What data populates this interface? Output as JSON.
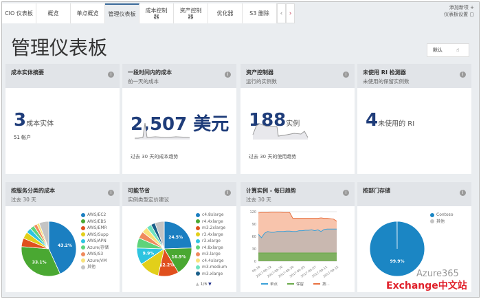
{
  "tabs": [
    "CIO 仪表板",
    "概览",
    "单点概览",
    "管理仪表板",
    "成本控制器",
    "资产控制器",
    "优化器",
    "S3 删除"
  ],
  "active_tab": 3,
  "tab_nav": {
    "prev": "‹",
    "next": "›"
  },
  "settings": {
    "add": "添加新项",
    "settings": "仪表板设置",
    "plus": "+"
  },
  "page_title": "管理仪表板",
  "default_button": "默认",
  "cards": [
    {
      "title": "成本实体摘要",
      "subtitle": "",
      "value": "3",
      "unit": "成本实体",
      "extra": "51 帐户"
    },
    {
      "title": "一段时间内的成本",
      "subtitle": "前一天的成本",
      "value": "2,507 美元",
      "unit": "",
      "caption": "过去 30 天的成本趋势"
    },
    {
      "title": "资产控制器",
      "subtitle": "运行的实例数",
      "value": "188",
      "unit": "实例",
      "caption": "过去 30 天的使用趋势"
    },
    {
      "title": "未使用 RI 检测器",
      "subtitle": "未使用的保留实例数",
      "value": "4",
      "unit": "未使用的 RI"
    },
    {
      "title": "按服务分类的成本",
      "subtitle": "过去 30 天"
    },
    {
      "title": "可能节省",
      "subtitle": "实例类型定价建议"
    },
    {
      "title": "计算实例 - 每日趋势",
      "subtitle": "过去 30 天"
    },
    {
      "title": "按部门存储",
      "subtitle": ""
    }
  ],
  "chart_data": [
    {
      "type": "pie",
      "slices": [
        {
          "name": "AWS/EC2",
          "value": 43.2,
          "color": "#1b7fc1",
          "label": "43.2%"
        },
        {
          "name": "AWS/EBS",
          "value": 33.1,
          "color": "#4aa832",
          "label": "33.1%"
        },
        {
          "name": "AWS/EMR",
          "value": 5,
          "color": "#e0501e"
        },
        {
          "name": "AWS/Supp",
          "value": 4,
          "color": "#e2cf1a"
        },
        {
          "name": "AWS/APN",
          "value": 3,
          "color": "#2ec4e0"
        },
        {
          "name": "Azure/存储",
          "value": 2.5,
          "color": "#5fd37a"
        },
        {
          "name": "AWS/S3",
          "value": 2,
          "color": "#f08a5d"
        },
        {
          "name": "Azure/VM",
          "value": 1.5,
          "color": "#f8e27a"
        },
        {
          "name": "其他",
          "value": 5.7,
          "color": "#c4c4c4"
        }
      ]
    },
    {
      "type": "pie",
      "legend_page": "1/6",
      "slices": [
        {
          "name": "c4.8xlarge",
          "value": 24.5,
          "color": "#1b7fc1",
          "label": "24.5%"
        },
        {
          "name": "r4.4xlarge",
          "value": 16.9,
          "color": "#4aa832",
          "label": "16.9%"
        },
        {
          "name": "m3.2xlarge",
          "value": 12.2,
          "color": "#e0501e",
          "label": "12.2%"
        },
        {
          "name": "r3.4xlarge",
          "value": 12,
          "color": "#e2cf1a"
        },
        {
          "name": "r3.xlarge",
          "value": 9.9,
          "color": "#2ec4e0",
          "label": "9.9%"
        },
        {
          "name": "r4.8xlarge",
          "value": 6,
          "color": "#5fd37a"
        },
        {
          "name": "m3.large",
          "value": 4,
          "color": "#f08a5d"
        },
        {
          "name": "c4.4xlarge",
          "value": 3.5,
          "color": "#f8e27a"
        },
        {
          "name": "m3.medium",
          "value": 3,
          "color": "#6fe3c0"
        },
        {
          "name": "m3.xlarge",
          "value": 2.5,
          "color": "#1a5f8a"
        },
        {
          "name": "",
          "value": 5.5,
          "color": "#c4c4c4"
        }
      ]
    },
    {
      "type": "area",
      "yticks": [
        0,
        30,
        60,
        90,
        120
      ],
      "ylim": [
        0,
        120
      ],
      "xticks": [
        "08-18",
        "2017-08-22",
        "2017-08-26",
        "2017-08-30",
        "2017-09-03",
        "2017-09-07",
        "2017-09-11",
        "2017-09-15"
      ],
      "series": [
        {
          "name": "单点",
          "color": "#3aa0d8",
          "values": [
            65,
            57,
            68,
            72,
            70,
            70,
            72,
            72,
            72,
            73,
            73,
            72,
            72,
            74,
            74,
            75,
            75,
            76,
            74,
            76,
            72,
            77,
            78,
            78,
            78,
            78
          ]
        },
        {
          "name": "保留",
          "color": "#6aaa4a",
          "values": [
            20,
            20,
            20,
            20,
            20,
            20,
            20,
            20,
            20,
            20,
            20,
            20,
            20,
            20,
            20,
            20,
            20,
            20,
            20,
            20,
            20,
            20,
            20,
            20,
            20,
            20
          ]
        },
        {
          "name": "按...",
          "color": "#e8703f",
          "values": [
            117,
            118,
            118,
            118,
            119,
            119,
            119,
            119,
            118,
            118,
            118,
            104,
            104,
            104,
            104,
            104,
            104,
            104,
            104,
            104,
            105,
            104,
            104,
            103,
            102,
            97
          ]
        }
      ]
    },
    {
      "type": "pie",
      "slices": [
        {
          "name": "Contoso",
          "value": 99.9,
          "color": "#1b86c4",
          "label": "99.9%"
        },
        {
          "name": "其他",
          "value": 0.1,
          "color": "#c4c4c4"
        }
      ]
    }
  ],
  "watermark": {
    "line1": "Azure365",
    "line2": "Exchange中文站"
  }
}
